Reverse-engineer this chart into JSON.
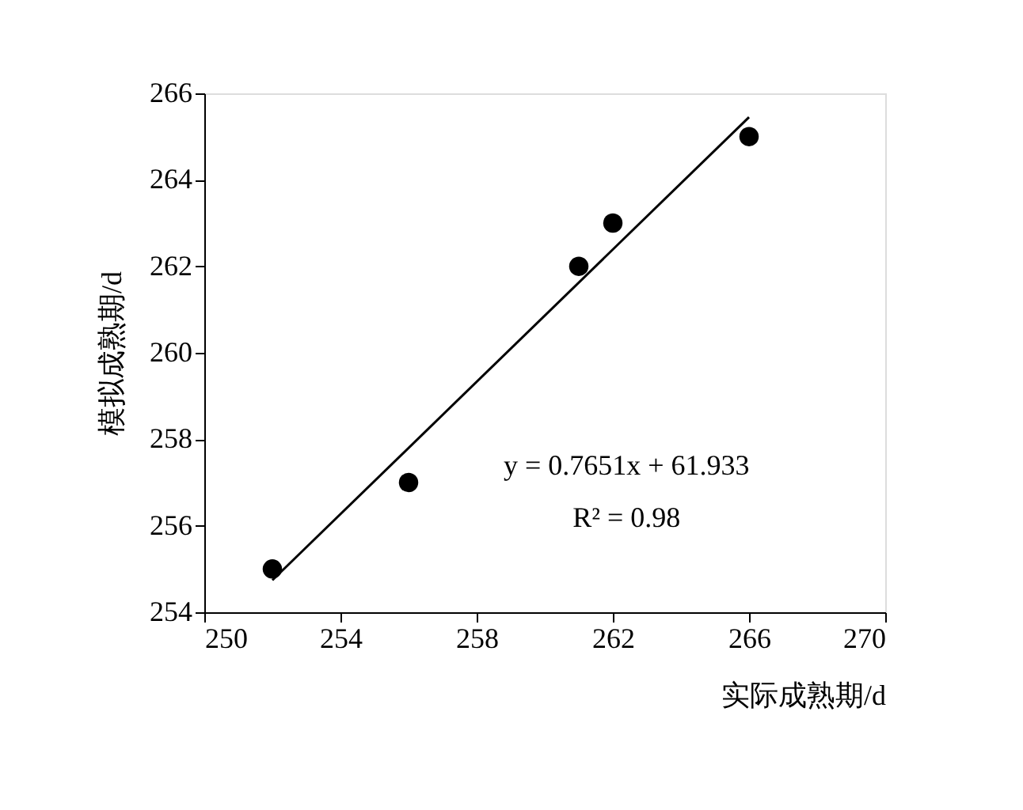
{
  "chart_data": {
    "type": "scatter",
    "xlabel": "实际成熟期/d",
    "ylabel": "模拟成熟期/d",
    "xlim": [
      250,
      270
    ],
    "xticks": [
      250,
      254,
      258,
      262,
      266,
      270
    ],
    "ylim": [
      254,
      266
    ],
    "yticks": [
      254,
      256,
      258,
      260,
      262,
      264,
      266
    ],
    "series": [
      {
        "color": "#000000",
        "x": [
          252,
          256,
          261,
          262,
          266
        ],
        "values": [
          255,
          257,
          262,
          263,
          265
        ]
      },
      {
        "type": "line",
        "color": "#000000",
        "marker": "none",
        "line_style": "solid",
        "x": [
          252,
          266
        ],
        "values": [
          254.74,
          265.45
        ]
      }
    ],
    "marker": "circle",
    "grid": false,
    "annotations": [
      "y = 0.7651x + 61.933",
      "R² = 0.98"
    ]
  }
}
